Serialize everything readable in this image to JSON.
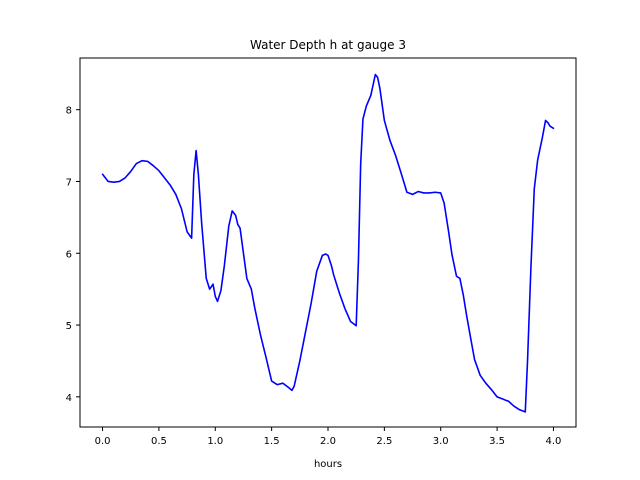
{
  "chart_data": {
    "type": "line",
    "title": "Water Depth h at gauge 3",
    "xlabel": "hours",
    "ylabel": "",
    "xlim": [
      -0.2,
      4.2
    ],
    "ylim": [
      3.58,
      8.72
    ],
    "xticks": [
      0.0,
      0.5,
      1.0,
      1.5,
      2.0,
      2.5,
      3.0,
      3.5,
      4.0
    ],
    "xtick_labels": [
      "0.0",
      "0.5",
      "1.0",
      "1.5",
      "2.0",
      "2.5",
      "3.0",
      "3.5",
      "4.0"
    ],
    "yticks": [
      4,
      5,
      6,
      7,
      8
    ],
    "ytick_labels": [
      "4",
      "5",
      "6",
      "7",
      "8"
    ],
    "grid": false,
    "legend": "none",
    "series": [
      {
        "color": "#0000ff",
        "x": [
          0.0,
          0.05,
          0.1,
          0.15,
          0.2,
          0.25,
          0.3,
          0.35,
          0.4,
          0.45,
          0.5,
          0.55,
          0.6,
          0.65,
          0.7,
          0.75,
          0.79,
          0.81,
          0.83,
          0.85,
          0.88,
          0.92,
          0.95,
          0.98,
          1.0,
          1.02,
          1.05,
          1.08,
          1.12,
          1.15,
          1.18,
          1.2,
          1.22,
          1.25,
          1.28,
          1.32,
          1.35,
          1.4,
          1.45,
          1.5,
          1.55,
          1.6,
          1.65,
          1.68,
          1.7,
          1.75,
          1.8,
          1.85,
          1.9,
          1.95,
          1.98,
          2.0,
          2.03,
          2.05,
          2.1,
          2.15,
          2.2,
          2.25,
          2.27,
          2.29,
          2.31,
          2.34,
          2.38,
          2.42,
          2.44,
          2.46,
          2.5,
          2.55,
          2.6,
          2.65,
          2.7,
          2.75,
          2.8,
          2.85,
          2.9,
          2.95,
          3.0,
          3.03,
          3.07,
          3.1,
          3.14,
          3.17,
          3.2,
          3.23,
          3.27,
          3.3,
          3.35,
          3.4,
          3.45,
          3.5,
          3.55,
          3.58,
          3.6,
          3.65,
          3.7,
          3.75,
          3.77,
          3.8,
          3.83,
          3.86,
          3.9,
          3.93,
          3.95,
          3.97,
          4.0
        ],
        "y": [
          7.1,
          7.0,
          6.99,
          7.0,
          7.05,
          7.14,
          7.25,
          7.29,
          7.28,
          7.22,
          7.15,
          7.05,
          6.95,
          6.82,
          6.62,
          6.3,
          6.21,
          7.1,
          7.43,
          7.1,
          6.4,
          5.65,
          5.5,
          5.57,
          5.4,
          5.33,
          5.48,
          5.82,
          6.38,
          6.59,
          6.53,
          6.4,
          6.35,
          6.0,
          5.65,
          5.5,
          5.24,
          4.87,
          4.55,
          4.22,
          4.17,
          4.19,
          4.13,
          4.09,
          4.15,
          4.5,
          4.9,
          5.3,
          5.75,
          5.97,
          5.99,
          5.97,
          5.83,
          5.7,
          5.45,
          5.23,
          5.05,
          4.99,
          5.9,
          7.25,
          7.87,
          8.05,
          8.2,
          8.49,
          8.45,
          8.3,
          7.85,
          7.57,
          7.36,
          7.11,
          6.85,
          6.82,
          6.86,
          6.84,
          6.84,
          6.85,
          6.84,
          6.7,
          6.3,
          5.98,
          5.68,
          5.65,
          5.42,
          5.13,
          4.78,
          4.52,
          4.3,
          4.19,
          4.1,
          4.0,
          3.97,
          3.95,
          3.94,
          3.87,
          3.82,
          3.79,
          4.5,
          5.8,
          6.9,
          7.3,
          7.6,
          7.85,
          7.82,
          7.77,
          7.74
        ]
      }
    ]
  }
}
